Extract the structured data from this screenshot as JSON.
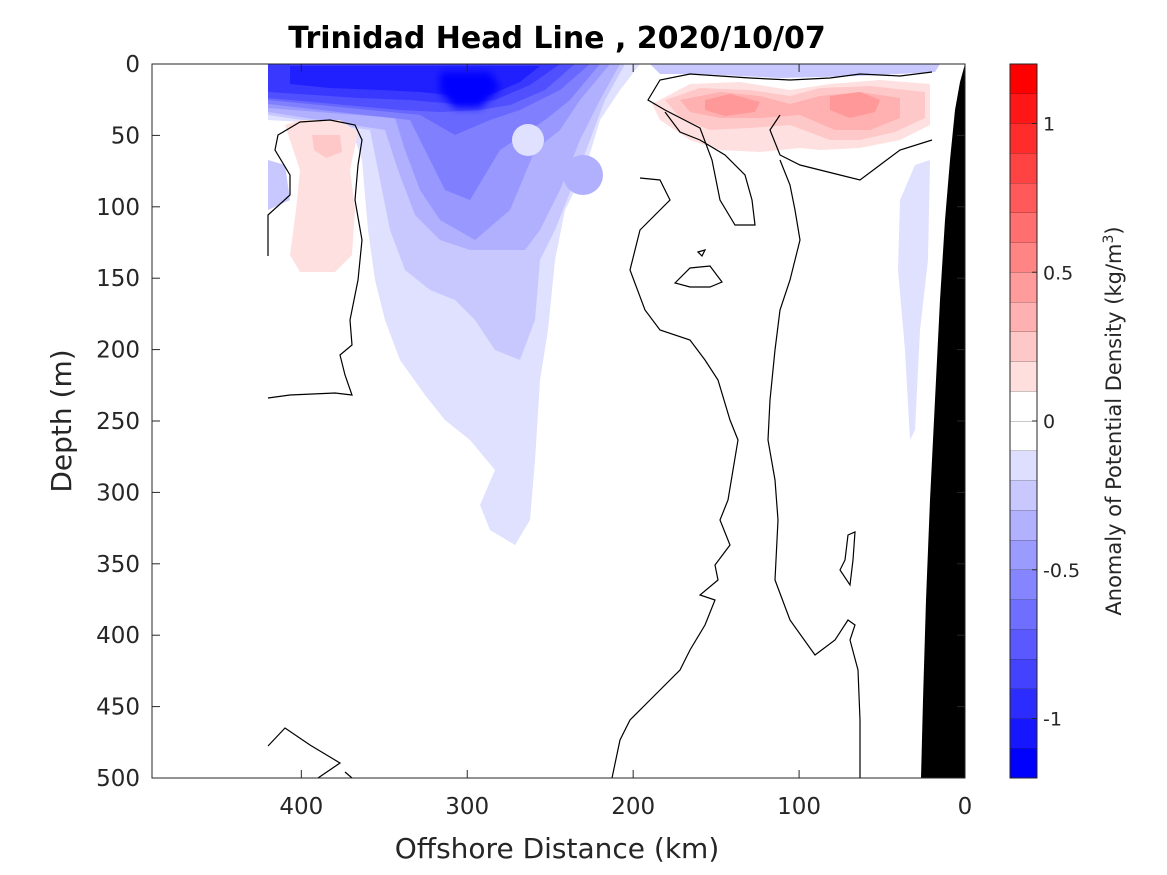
{
  "chart_data": {
    "type": "heatmap",
    "subtype": "filled-contour depth section",
    "title": "Trinidad Head Line , 2020/10/07",
    "xlabel": "Offshore Distance (km)",
    "ylabel": "Depth (m)",
    "xlim": [
      490,
      0
    ],
    "ylim": [
      0,
      500
    ],
    "x_reversed": true,
    "y_reversed": true,
    "xticks": [
      400,
      300,
      200,
      100,
      0
    ],
    "yticks": [
      0,
      50,
      100,
      150,
      200,
      250,
      300,
      350,
      400,
      450,
      500
    ],
    "colorbar": {
      "label_prefix": "Anomaly of Potential Density (kg/m",
      "label_sup": "3",
      "label_suffix": ")",
      "range": [
        -1.2,
        1.2
      ],
      "step": 0.1,
      "ticks": [
        1,
        0.5,
        0,
        -0.5,
        -1
      ],
      "low_color": "#0000ff",
      "mid_color": "#ffffff",
      "high_color": "#ff0000"
    },
    "data_extent_km": [
      20,
      420
    ],
    "features": [
      {
        "label": "surface negative anomaly core",
        "x": [
          300,
          390
        ],
        "depth": [
          0,
          30
        ],
        "value": -1.0
      },
      {
        "label": "subsurface negative anomaly tongue",
        "x": [
          230,
          360
        ],
        "depth": [
          30,
          340
        ],
        "value": -0.3
      },
      {
        "label": "offshore positive anomaly",
        "x": [
          365,
          400
        ],
        "depth": [
          40,
          140
        ],
        "value": 0.2
      },
      {
        "label": "nearshore surface positive anomaly",
        "x": [
          40,
          180
        ],
        "depth": [
          10,
          60
        ],
        "value": 0.35
      },
      {
        "label": "nearshore negative anomaly strip",
        "x": [
          30,
          45
        ],
        "depth": [
          70,
          260
        ],
        "value": -0.1
      }
    ],
    "bathymetry": "seafloor shown in black at 0–25 km"
  }
}
